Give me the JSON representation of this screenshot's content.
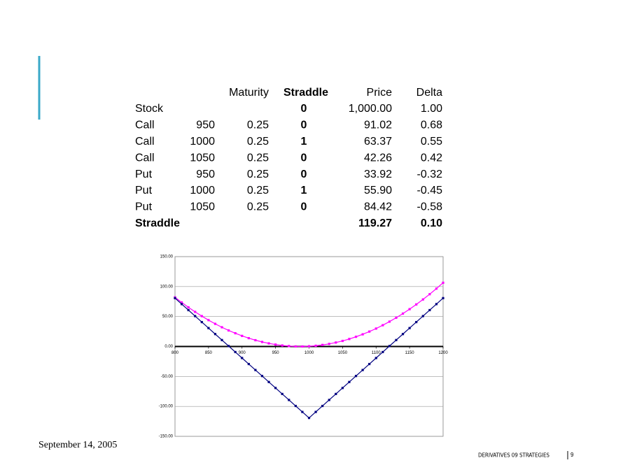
{
  "table": {
    "header": {
      "maturity": "Maturity",
      "straddle": "Straddle",
      "price": "Price",
      "delta": "Delta"
    },
    "rows": [
      {
        "label": "Stock",
        "straddle": "0",
        "price": "1,000.00",
        "delta": "1.00"
      },
      {
        "label": "Call",
        "strike": "950",
        "maturity": "0.25",
        "straddle": "0",
        "price": "91.02",
        "delta": "0.68"
      },
      {
        "label": "Call",
        "strike": "1000",
        "maturity": "0.25",
        "straddle": "1",
        "price": "63.37",
        "delta": "0.55"
      },
      {
        "label": "Call",
        "strike": "1050",
        "maturity": "0.25",
        "straddle": "0",
        "price": "42.26",
        "delta": "0.42"
      },
      {
        "label": "Put",
        "strike": "950",
        "maturity": "0.25",
        "straddle": "0",
        "price": "33.92",
        "delta": "-0.32"
      },
      {
        "label": "Put",
        "strike": "1000",
        "maturity": "0.25",
        "straddle": "1",
        "price": "55.90",
        "delta": "-0.45"
      },
      {
        "label": "Put",
        "strike": "1050",
        "maturity": "0.25",
        "straddle": "0",
        "price": "84.42",
        "delta": "-0.58"
      },
      {
        "label": "Straddle",
        "price": "119.27",
        "delta": "0.10"
      }
    ]
  },
  "chart_data": {
    "type": "line",
    "x": [
      800,
      810,
      820,
      830,
      840,
      850,
      860,
      870,
      880,
      890,
      900,
      910,
      920,
      930,
      940,
      950,
      960,
      970,
      980,
      990,
      1000,
      1010,
      1020,
      1030,
      1040,
      1050,
      1060,
      1070,
      1080,
      1090,
      1100,
      1110,
      1120,
      1130,
      1140,
      1150,
      1160,
      1170,
      1180,
      1190,
      1200
    ],
    "series": [
      {
        "color": "#ff00ff",
        "values": [
          82.0,
          73.5,
          65.4,
          57.8,
          50.7,
          44.0,
          37.8,
          32.1,
          26.8,
          22.1,
          17.7,
          13.9,
          10.5,
          7.6,
          5.2,
          3.2,
          1.7,
          0.7,
          0.1,
          0.0,
          0.4,
          1.2,
          2.6,
          4.3,
          6.6,
          9.3,
          12.5,
          16.2,
          20.3,
          24.9,
          29.9,
          35.5,
          41.5,
          48.0,
          54.9,
          62.3,
          70.2,
          78.5,
          87.3,
          96.6,
          106.4
        ]
      },
      {
        "color": "#000080",
        "values": [
          80.73,
          70.73,
          60.73,
          50.73,
          40.73,
          30.73,
          20.73,
          10.73,
          0.73,
          -9.27,
          -19.27,
          -29.27,
          -39.27,
          -49.27,
          -59.27,
          -69.27,
          -79.27,
          -89.27,
          -99.27,
          -109.27,
          -119.27,
          -109.27,
          -99.27,
          -89.27,
          -79.27,
          -69.27,
          -59.27,
          -49.27,
          -39.27,
          -29.27,
          -19.27,
          -9.27,
          0.73,
          10.73,
          20.73,
          30.73,
          40.73,
          50.73,
          60.73,
          70.73,
          80.73
        ]
      }
    ],
    "xlim": [
      800,
      1200
    ],
    "xticks": [
      800,
      850,
      900,
      950,
      1000,
      1050,
      1100,
      1150,
      1200
    ],
    "ylim": [
      -150,
      150
    ],
    "yticks": [
      {
        "value": -150,
        "label": "-150.00"
      },
      {
        "value": -100,
        "label": "-100.00"
      },
      {
        "value": -50,
        "label": "-50.00"
      },
      {
        "value": 0,
        "label": "0.00"
      },
      {
        "value": 50,
        "label": "50.00"
      },
      {
        "value": 100,
        "label": "100.00"
      },
      {
        "value": 150,
        "label": "150.00"
      }
    ],
    "grid": true
  },
  "footer": {
    "date": "September 14, 2005",
    "course": "DERIVATIVES 09 STRATEGIES",
    "page": "9"
  }
}
